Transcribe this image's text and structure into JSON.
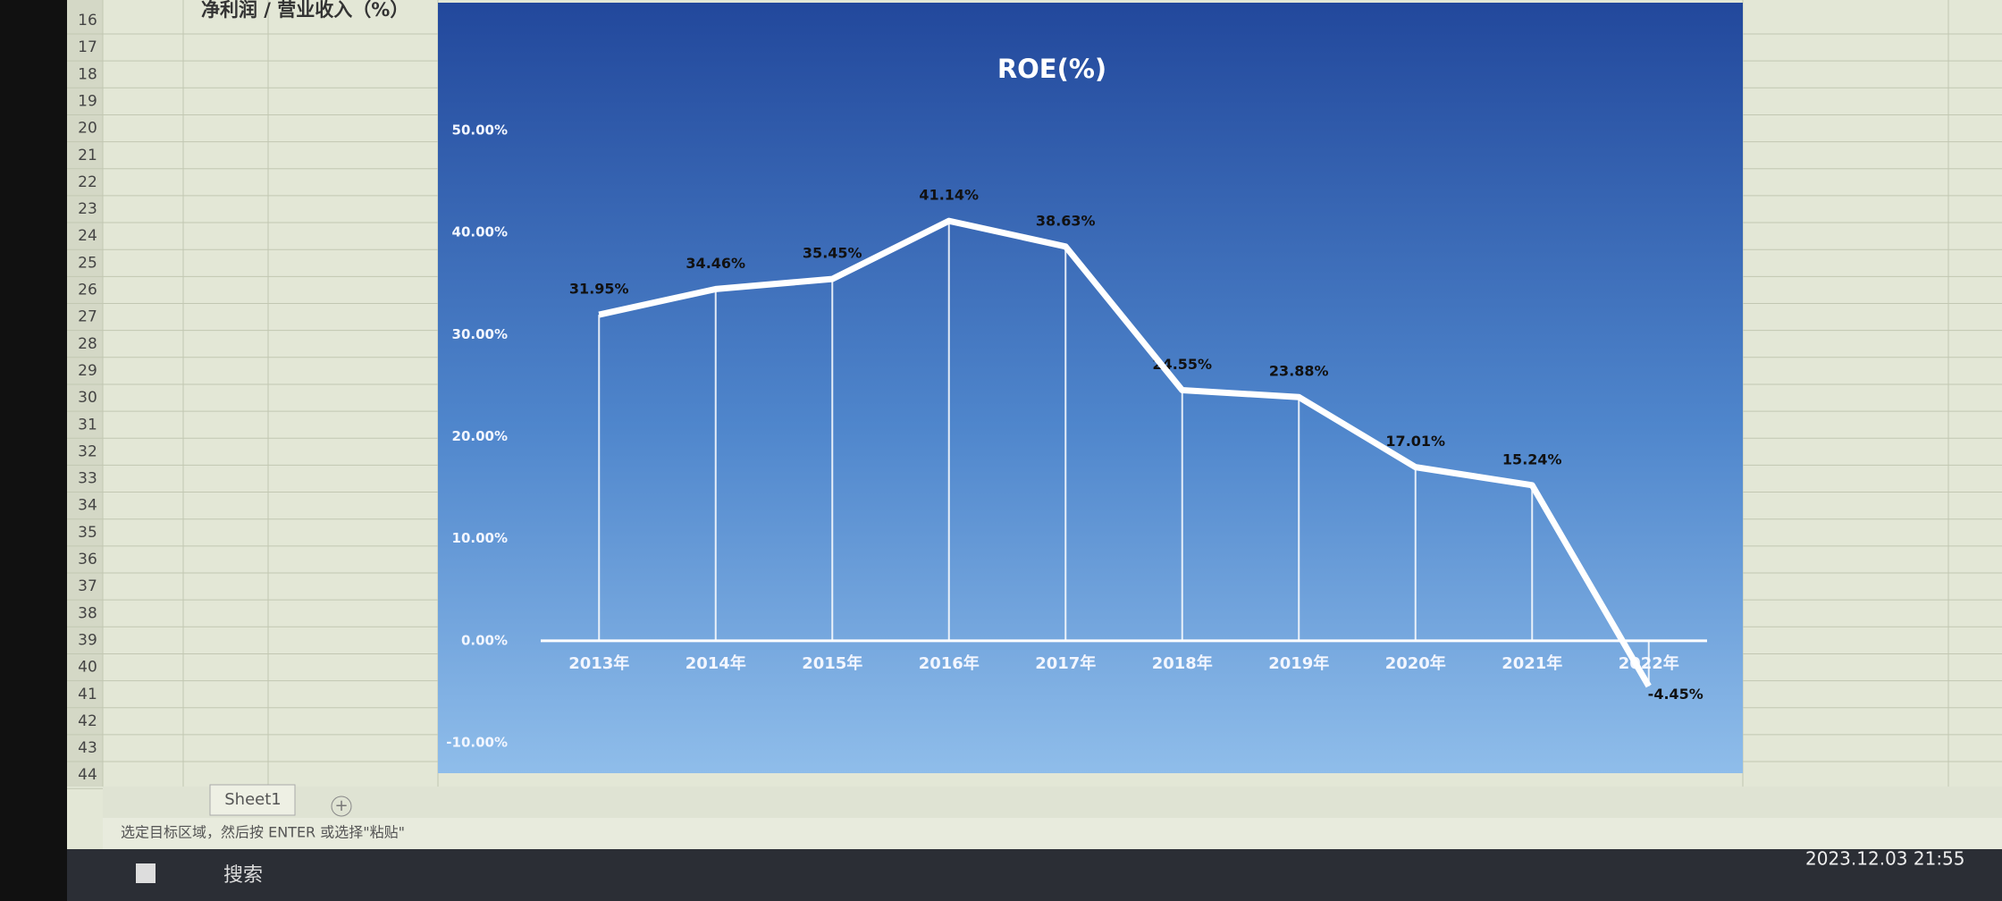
{
  "spreadsheet": {
    "row_numbers": [
      16,
      17,
      18,
      19,
      20,
      21,
      22,
      23,
      24,
      25,
      26,
      27,
      28,
      29,
      30,
      31,
      32,
      33,
      34,
      35,
      36,
      37,
      38,
      39,
      40,
      41,
      42,
      43,
      44
    ],
    "cell_label": "净利润 / 营业收入（%）",
    "sheet_tab": "Sheet1",
    "status_bar": "选定目标区域，然后按 ENTER 或选择\"粘贴\""
  },
  "taskbar": {
    "search": "搜索",
    "clock": "2023.12.03 21:55"
  },
  "chart_data": {
    "type": "line",
    "title": "ROE(%)",
    "categories": [
      "2013年",
      "2014年",
      "2015年",
      "2016年",
      "2017年",
      "2018年",
      "2019年",
      "2020年",
      "2021年",
      "2022年"
    ],
    "series": [
      {
        "name": "ROE",
        "color": "#ffffff",
        "values": [
          31.95,
          34.46,
          35.45,
          41.14,
          38.63,
          24.55,
          23.88,
          17.01,
          15.24,
          -4.45
        ],
        "value_labels": [
          "31.95%",
          "34.46%",
          "35.45%",
          "41.14%",
          "38.63%",
          "24.55%",
          "23.88%",
          "17.01%",
          "15.24%",
          "-4.45%"
        ]
      }
    ],
    "ylim": [
      -10,
      50
    ],
    "yticks": [
      {
        "value": -10,
        "label": "-10.00%"
      },
      {
        "value": 0,
        "label": "0.00%"
      },
      {
        "value": 10,
        "label": "10.00%"
      },
      {
        "value": 20,
        "label": "20.00%"
      },
      {
        "value": 30,
        "label": "30.00%"
      },
      {
        "value": 40,
        "label": "40.00%"
      },
      {
        "value": 50,
        "label": "50.00%"
      }
    ],
    "drop_lines": true
  }
}
